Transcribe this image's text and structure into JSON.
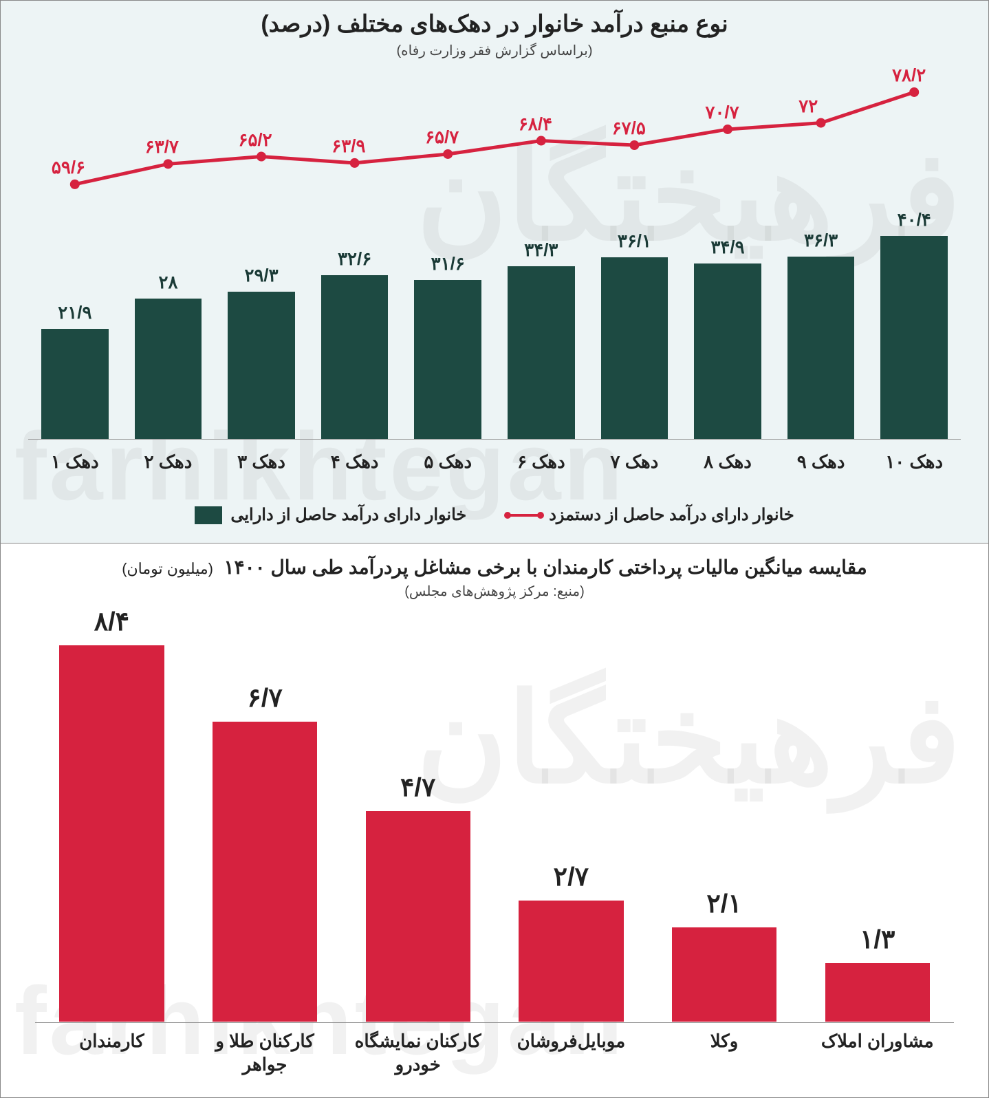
{
  "watermark_ar": "فرهیختگان",
  "watermark_en": "farhikhtegan",
  "chart1": {
    "title": "نوع منبع درآمد خانوار در دهک‌های مختلف (درصد)",
    "subtitle": "(براساس گزارش فقر وزارت رفاه)",
    "background_color": "#edf4f5",
    "categories": [
      "دهک ۱",
      "دهک ۲",
      "دهک ۳",
      "دهک ۴",
      "دهک ۵",
      "دهک ۶",
      "دهک ۷",
      "دهک ۸",
      "دهک ۹",
      "دهک ۱۰"
    ],
    "bar_series": {
      "name": "خانوار دارای درآمد حاصل از دارایی",
      "color": "#1d4a42",
      "values": [
        21.9,
        28,
        29.3,
        32.6,
        31.6,
        34.3,
        36.1,
        34.9,
        36.3,
        40.4
      ],
      "labels": [
        "۲۱/۹",
        "۲۸",
        "۲۹/۳",
        "۳۲/۶",
        "۳۱/۶",
        "۳۴/۳",
        "۳۶/۱",
        "۳۴/۹",
        "۳۶/۳",
        "۴۰/۴"
      ],
      "ymax": 45,
      "label_fontsize": 26
    },
    "line_series": {
      "name": "خانوار دارای درآمد حاصل از دستمزد",
      "color": "#d6223f",
      "values": [
        78.2,
        72,
        70.7,
        67.5,
        68.4,
        65.7,
        63.9,
        65.2,
        63.7,
        59.6
      ],
      "labels": [
        "۷۸/۲",
        "۷۲",
        "۷۰/۷",
        "۶۷/۵",
        "۶۸/۴",
        "۶۵/۷",
        "۶۳/۹",
        "۶۵/۲",
        "۶۳/۷",
        "۵۹/۶"
      ],
      "ymin": 55,
      "ymax": 80,
      "line_width": 5,
      "marker_radius": 7,
      "label_fontsize": 26
    },
    "x_fontsize": 26,
    "title_fontsize": 34,
    "subtitle_fontsize": 20
  },
  "chart2": {
    "title_main": "مقایسه میانگین مالیات پرداختی کارمندان با برخی مشاغل پردرآمد طی سال ۱۴۰۰",
    "title_unit": "(میلیون تومان)",
    "subtitle": "(منبع: مرکز پژوهش‌های مجلس)",
    "background_color": "#ffffff",
    "bar_color": "#d6223f",
    "categories": [
      "کارمندان",
      "کارکنان طلا و جواهر",
      "کارکنان نمایشگاه خودرو",
      "موبایل‌فروشان",
      "وکلا",
      "مشاوران املاک"
    ],
    "values": [
      8.4,
      6.7,
      4.7,
      2.7,
      2.1,
      1.3
    ],
    "labels": [
      "۸/۴",
      "۶/۷",
      "۴/۷",
      "۲/۷",
      "۲/۱",
      "۱/۳"
    ],
    "ymax": 9,
    "label_fontsize": 38,
    "x_fontsize": 26,
    "title_fontsize": 28,
    "subtitle_fontsize": 20
  }
}
